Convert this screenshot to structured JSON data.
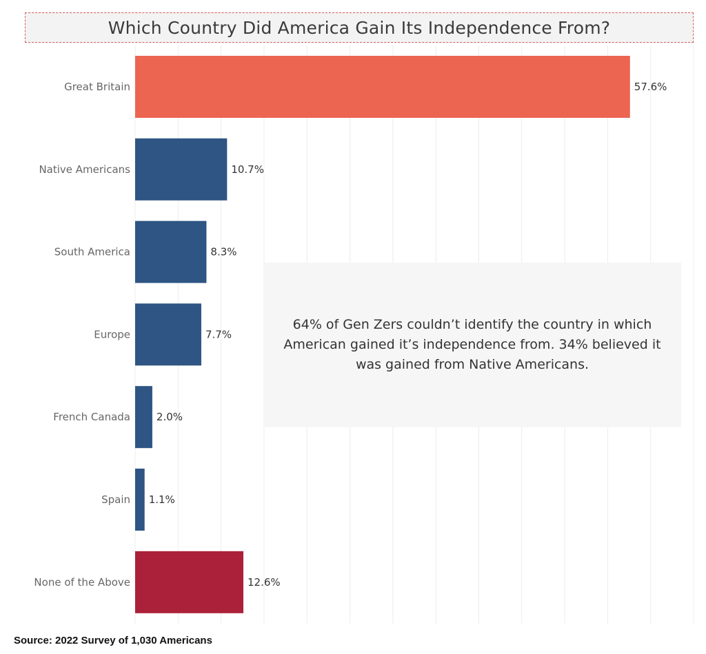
{
  "chart_data": {
    "type": "bar",
    "orientation": "horizontal",
    "title": "Which Country Did America Gain Its Independence From?",
    "categories": [
      "Great Britain",
      "Native Americans",
      "South America",
      "Europe",
      "French Canada",
      "Spain",
      "None of the Above"
    ],
    "values": [
      57.6,
      10.7,
      8.3,
      7.7,
      2.0,
      1.1,
      12.6
    ],
    "value_labels": [
      "57.6%",
      "10.7%",
      "8.3%",
      "7.7%",
      "2.0%",
      "1.1%",
      "12.6%"
    ],
    "colors": [
      "#ec6551",
      "#2e5583",
      "#2e5583",
      "#2e5583",
      "#2e5583",
      "#2e5583",
      "#ab2139"
    ],
    "xlim": [
      0,
      65
    ],
    "grid_x_step": 5,
    "xlabel": "",
    "ylabel": "",
    "grid": true
  },
  "annotation": {
    "text": "64% of Gen Zers couldn’t identify the country in which American gained it’s independence from. 34% believed it was gained from Native Americans."
  },
  "source": "Source: 2022 Survey of 1,030 Americans",
  "colors": {
    "title_background": "#f3f3f3",
    "title_border": "#d45b5b",
    "annotation_background": "#f6f6f6",
    "gridline": "#ececec"
  }
}
